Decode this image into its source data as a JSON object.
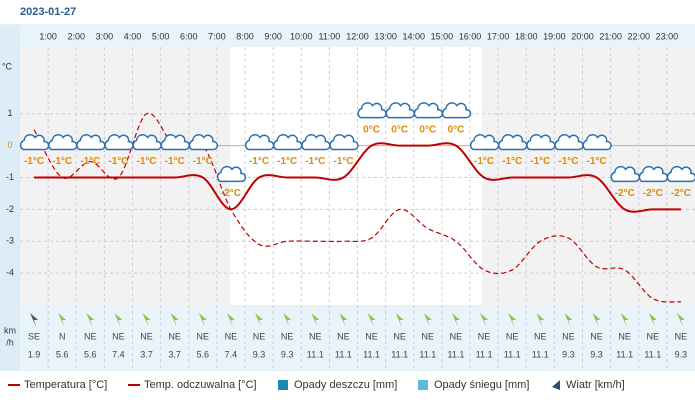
{
  "chart_data": {
    "type": "line",
    "title": "2023-01-27",
    "hour_labels": [
      "1:00",
      "2:00",
      "3:00",
      "4:00",
      "5:00",
      "6:00",
      "7:00",
      "8:00",
      "9:00",
      "10:00",
      "11:00",
      "12:00",
      "13:00",
      "14:00",
      "15:00",
      "16:00",
      "17:00",
      "18:00",
      "19:00",
      "20:00",
      "21:00",
      "22:00",
      "23:00"
    ],
    "y_unit": "°C",
    "ylim": [
      -5,
      3
    ],
    "yticks": [
      -4,
      -3,
      -2,
      -1,
      0,
      1
    ],
    "grid": true,
    "series": [
      {
        "name": "Temperatura [°C]",
        "color": "#c00000",
        "values": [
          -1,
          -1,
          -1,
          -1,
          -1,
          -1,
          -1,
          -2,
          -1,
          -1,
          -1,
          -1,
          0,
          0,
          0,
          0,
          -1,
          -1,
          -1,
          -1,
          -1,
          -2,
          -2,
          -2
        ],
        "value_labels": [
          "-1°C",
          "-1°C",
          "-1°C",
          "-1°C",
          "-1°C",
          "-1°C",
          "-1°C",
          "-2°C",
          "-1°C",
          "-1°C",
          "-1°C",
          "-1°C",
          "0°C",
          "0°C",
          "0°C",
          "0°C",
          "-1°C",
          "-1°C",
          "-1°C",
          "-1°C",
          "-1°C",
          "-2°C",
          "-2°C",
          "-2°C"
        ]
      },
      {
        "name": "Temp. odczuwalna [°C]",
        "color": "#c00000",
        "values": [
          0.5,
          -1,
          -0.5,
          -1,
          1,
          0,
          0,
          -2,
          -3.1,
          -3,
          -3,
          -3,
          -2.9,
          -2,
          -2.6,
          -3,
          -3.9,
          -3.9,
          -3,
          -2.9,
          -3.8,
          -3.9,
          -4.8,
          -4.9
        ]
      }
    ],
    "legend_extra": [
      "Opady deszczu [mm]",
      "Opady śniegu [mm]",
      "Wiatr [km/h]"
    ],
    "wind_unit": [
      "km",
      "/h"
    ],
    "wind_dir": [
      "SE",
      "N",
      "NE",
      "NE",
      "NE",
      "NE",
      "NE",
      "NE",
      "NE",
      "NE",
      "NE",
      "NE",
      "NE",
      "NE",
      "NE",
      "NE",
      "NE",
      "NE",
      "NE",
      "NE",
      "NE",
      "NE",
      "NE",
      "NE"
    ],
    "wind_speed": [
      1.9,
      5.6,
      5.6,
      7.4,
      3.7,
      3.7,
      5.6,
      7.4,
      9.3,
      9.3,
      11.1,
      11.1,
      11.1,
      11.1,
      11.1,
      11.1,
      11.1,
      11.1,
      11.1,
      9.3,
      9.3,
      11.1,
      11.1,
      9.3
    ]
  }
}
